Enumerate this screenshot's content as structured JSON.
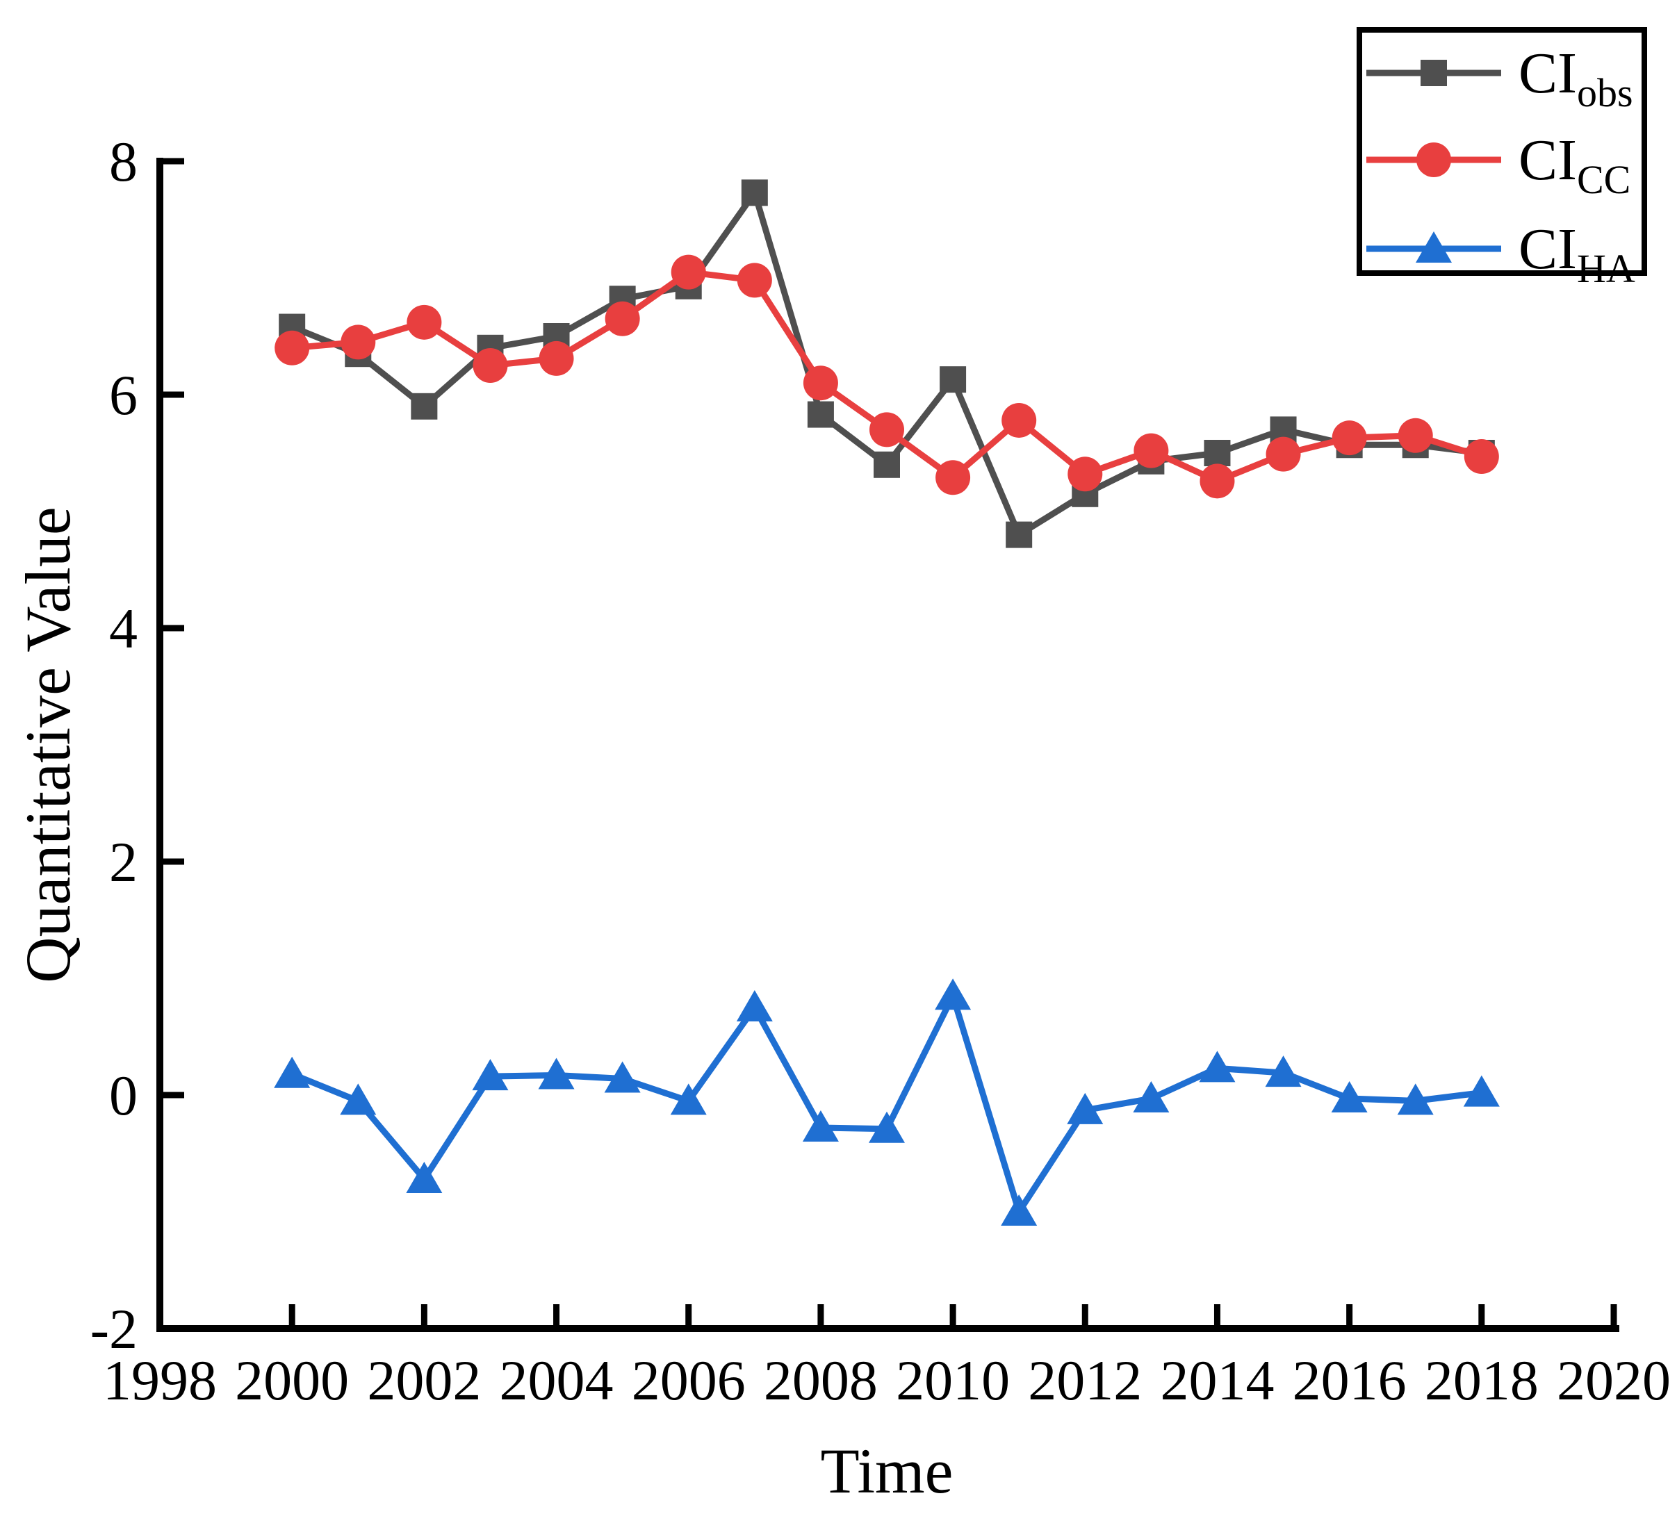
{
  "chart_data": {
    "type": "line",
    "title": "",
    "xlabel": "Time",
    "ylabel": "Quantitative Value",
    "grid": false,
    "x": [
      2000,
      2001,
      2002,
      2003,
      2004,
      2005,
      2006,
      2007,
      2008,
      2009,
      2010,
      2011,
      2012,
      2013,
      2014,
      2015,
      2016,
      2017,
      2018
    ],
    "series": [
      {
        "name": "CI",
        "subscript": "obs",
        "legend_label": "CI_obs",
        "marker": "square",
        "color": "#4f4f4f",
        "values": [
          6.58,
          6.35,
          5.9,
          6.4,
          6.5,
          6.82,
          6.93,
          7.73,
          5.83,
          5.4,
          6.13,
          4.8,
          5.15,
          5.43,
          5.5,
          5.7,
          5.57,
          5.57,
          5.5
        ]
      },
      {
        "name": "CI",
        "subscript": "CC",
        "legend_label": "CI_CC",
        "marker": "circle",
        "color": "#e83f3f",
        "values": [
          6.4,
          6.45,
          6.62,
          6.25,
          6.31,
          6.65,
          7.05,
          6.98,
          6.1,
          5.7,
          5.29,
          5.78,
          5.32,
          5.52,
          5.26,
          5.49,
          5.63,
          5.65,
          5.47
        ]
      },
      {
        "name": "CI",
        "subscript": "HA",
        "legend_label": "CI_HA",
        "marker": "triangle",
        "color": "#1f6fd2",
        "values": [
          0.18,
          -0.05,
          -0.72,
          0.16,
          0.17,
          0.14,
          -0.05,
          0.75,
          -0.28,
          -0.29,
          0.85,
          -1.0,
          -0.13,
          -0.03,
          0.23,
          0.19,
          -0.03,
          -0.05,
          0.02
        ]
      }
    ],
    "x_axis": {
      "min": 1998,
      "max": 2020,
      "tick_step": 2,
      "tick_labels": [
        "1998",
        "2000",
        "2002",
        "2004",
        "2006",
        "2008",
        "2010",
        "2012",
        "2014",
        "2016",
        "2018",
        "2020"
      ]
    },
    "y_axis": {
      "min": -2,
      "max": 8,
      "tick_step": 2,
      "tick_labels": [
        "-2",
        "0",
        "2",
        "4",
        "6",
        "8"
      ]
    },
    "legend": {
      "position": "top-right",
      "entries": [
        {
          "main": "CI",
          "sub": "obs"
        },
        {
          "main": "CI",
          "sub": "CC"
        },
        {
          "main": "CI",
          "sub": "HA"
        }
      ]
    },
    "axis_color": "#000000",
    "background_color": "#ffffff"
  }
}
